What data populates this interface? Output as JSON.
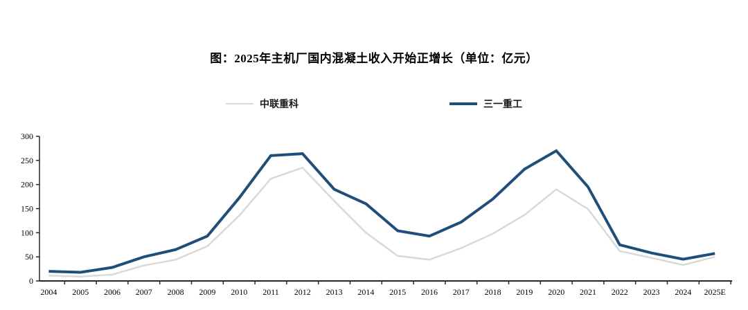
{
  "title": "图：2025年主机厂国内混凝土收入开始正增长（单位：亿元）",
  "colors": {
    "zoomlion_line": "#d9d9d9",
    "sany_line": "#1f4e79",
    "axis": "#262626",
    "label_text": "#000000"
  },
  "chart_data": {
    "type": "line",
    "title": "图：2025年主机厂国内混凝土收入开始正增长（单位：亿元）",
    "unit": "亿元",
    "categories": [
      "2004",
      "2005",
      "2006",
      "2007",
      "2008",
      "2009",
      "2010",
      "2011",
      "2012",
      "2013",
      "2014",
      "2015",
      "2016",
      "2017",
      "2018",
      "2019",
      "2020",
      "2021",
      "2022",
      "2023",
      "2024",
      "2025E"
    ],
    "series": [
      {
        "name": "中联重科",
        "color": "#d9d9d9",
        "stroke_width": 2.5,
        "values": [
          11,
          9,
          13,
          32,
          44,
          72,
          135,
          212,
          235,
          166,
          100,
          52,
          44,
          68,
          98,
          137,
          190,
          149,
          62,
          48,
          33,
          50
        ]
      },
      {
        "name": "三一重工",
        "color": "#1f4e79",
        "stroke_width": 4,
        "values": [
          20,
          18,
          28,
          50,
          65,
          93,
          172,
          260,
          264,
          190,
          160,
          104,
          93,
          122,
          170,
          232,
          270,
          195,
          75,
          58,
          45,
          57
        ]
      }
    ],
    "ylim": [
      0,
      300
    ],
    "ytick_step": 50,
    "yticks": [
      0,
      50,
      100,
      150,
      200,
      250,
      300
    ],
    "grid": false,
    "legend_position": "top"
  }
}
